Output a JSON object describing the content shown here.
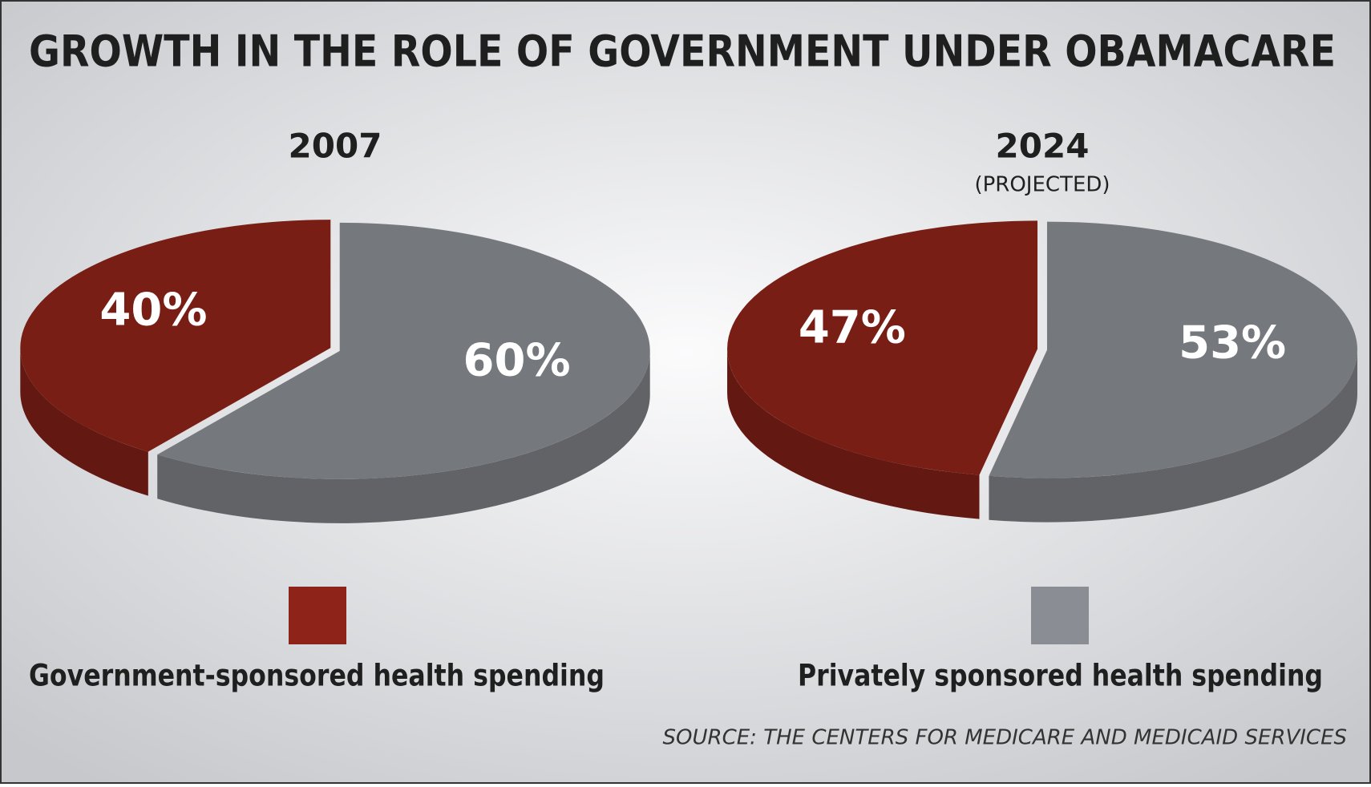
{
  "title": "GROWTH IN THE ROLE OF GOVERNMENT UNDER OBAMACARE",
  "source": "SOURCE: THE CENTERS FOR MEDICARE AND MEDICAID SERVICES",
  "legend": {
    "position": "bottom",
    "items": [
      {
        "name": "Government-sponsored health spending",
        "color": "#8e2319"
      },
      {
        "name": "Privately sponsored health spending",
        "color": "#8a8d93"
      }
    ]
  },
  "chart_data": [
    {
      "type": "pie",
      "title": "2007",
      "values": [
        40,
        60
      ],
      "value_labels": [
        "40%",
        "60%"
      ]
    },
    {
      "type": "pie",
      "title": "2024",
      "subtitle": "(PROJECTED)",
      "values": [
        47,
        53
      ],
      "value_labels": [
        "47%",
        "53%"
      ]
    }
  ]
}
